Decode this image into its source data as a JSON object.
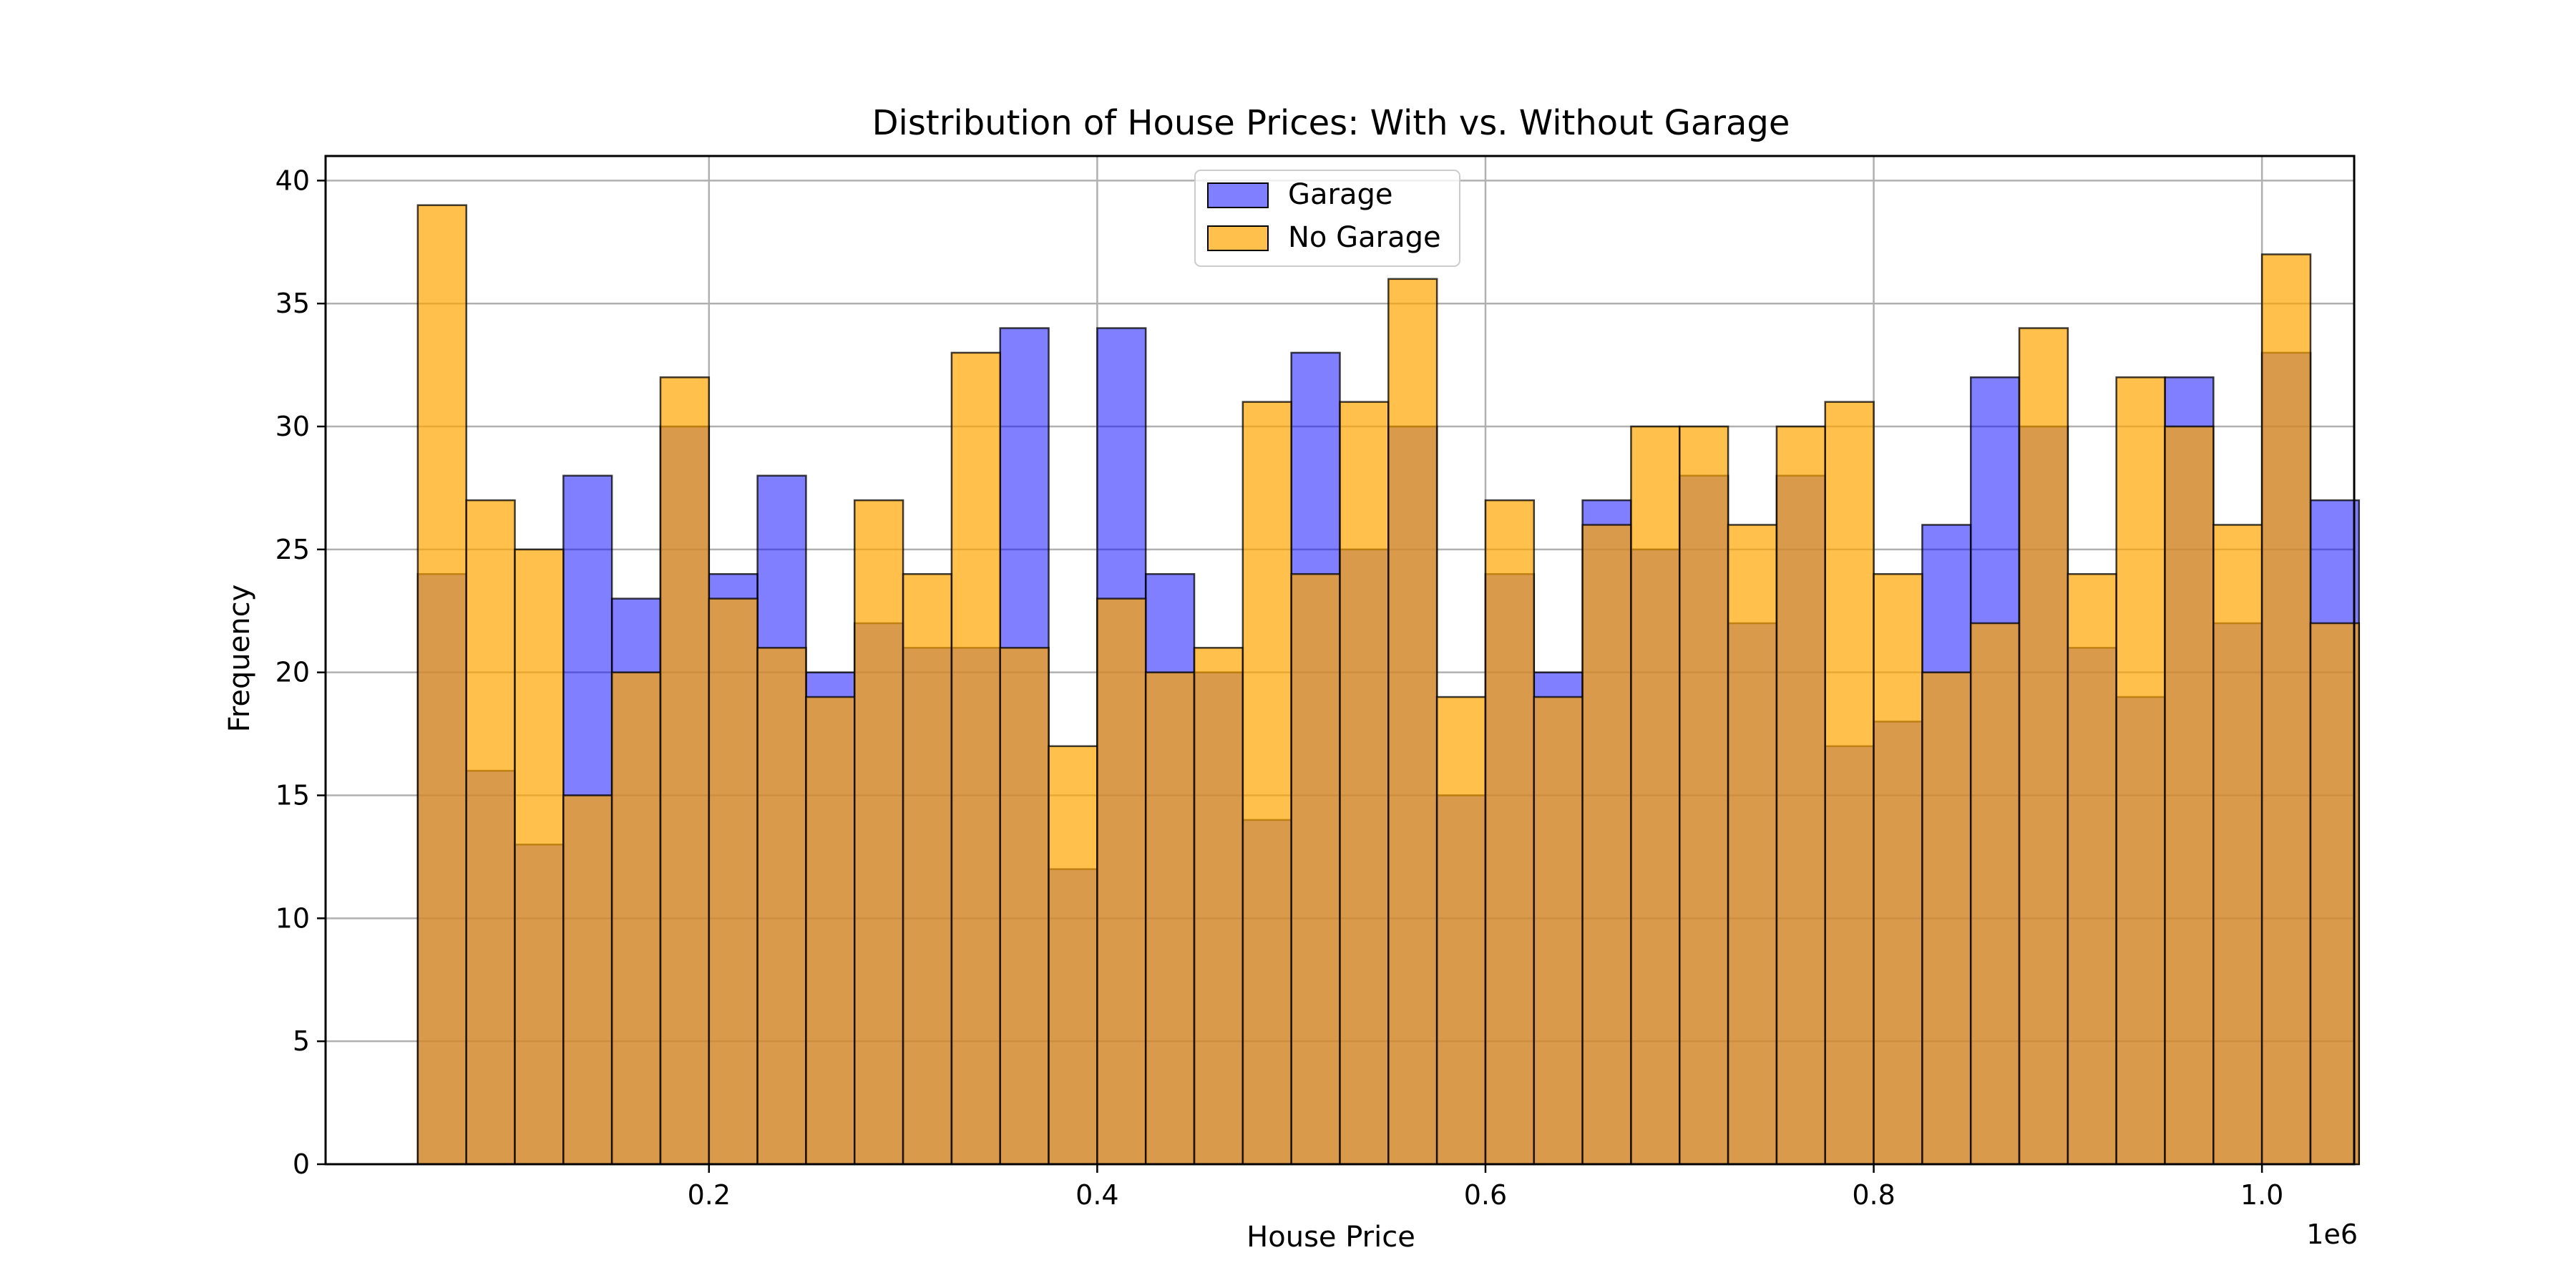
{
  "chart_data": {
    "type": "bar",
    "title": "Distribution of House Prices: With vs. Without Garage",
    "xlabel": "House Price",
    "ylabel": "Frequency",
    "x_offset_label": "1e6",
    "xlim": [
      0.0025,
      1.0475
    ],
    "ylim": [
      0,
      41
    ],
    "bin_start": 0.05,
    "bin_width": 0.025,
    "x_ticks": [
      0.2,
      0.4,
      0.6,
      0.8,
      1.0
    ],
    "x_tick_labels": [
      "0.2",
      "0.4",
      "0.6",
      "0.8",
      "1.0"
    ],
    "y_ticks": [
      0,
      5,
      10,
      15,
      20,
      25,
      30,
      35,
      40
    ],
    "y_tick_labels": [
      "0",
      "5",
      "10",
      "15",
      "20",
      "25",
      "30",
      "35",
      "40"
    ],
    "grid": true,
    "legend_position": "upper center",
    "series": [
      {
        "name": "Garage",
        "color": "#0000ff",
        "alpha": 0.5,
        "values": [
          24,
          16,
          13,
          28,
          23,
          30,
          24,
          28,
          20,
          22,
          21,
          21,
          34,
          12,
          34,
          24,
          20,
          14,
          33,
          25,
          30,
          15,
          24,
          20,
          27,
          25,
          28,
          22,
          28,
          17,
          18,
          26,
          32,
          30,
          21,
          19,
          32,
          22,
          33,
          27
        ]
      },
      {
        "name": "No Garage",
        "color": "#ffa500",
        "alpha": 0.7,
        "values": [
          39,
          27,
          25,
          15,
          20,
          32,
          23,
          21,
          19,
          27,
          24,
          33,
          21,
          17,
          23,
          20,
          21,
          31,
          24,
          31,
          36,
          19,
          27,
          19,
          26,
          30,
          30,
          26,
          30,
          31,
          24,
          20,
          22,
          34,
          24,
          32,
          30,
          26,
          37,
          22
        ]
      }
    ]
  }
}
